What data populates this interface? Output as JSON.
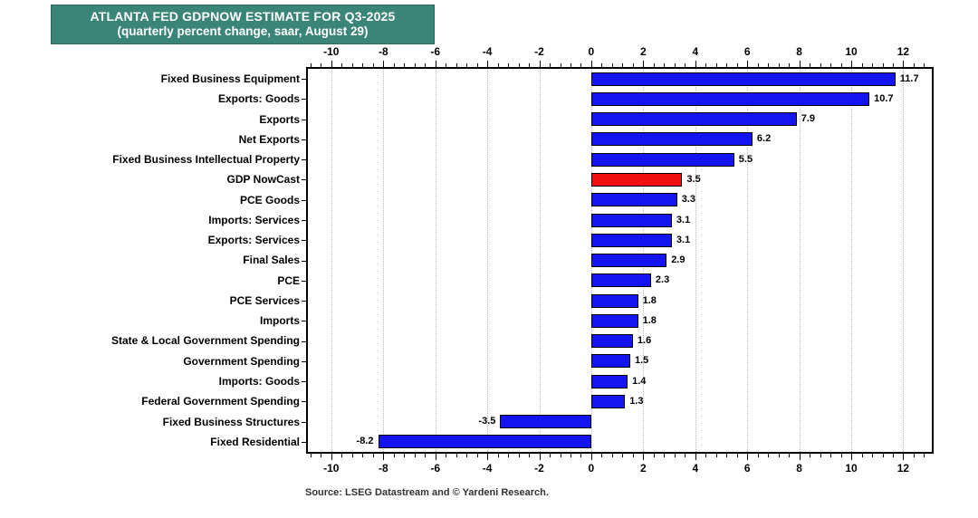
{
  "header": {
    "title": "ATLANTA FED GDPNOW ESTIMATE FOR Q3-2025",
    "subtitle": "(quarterly percent change, saar, August 29)",
    "bg_color": "#3A8577",
    "text_color": "#FFFFFF"
  },
  "chart_data": {
    "type": "bar",
    "orientation": "horizontal",
    "title": "ATLANTA FED GDPNOW ESTIMATE FOR Q3-2025",
    "subtitle": "(quarterly percent change, saar, August 29)",
    "categories": [
      "Fixed Business Equipment",
      "Exports: Goods",
      "Exports",
      "Net Exports",
      "Fixed Business Intellectual Property",
      "GDP NowCast",
      "PCE Goods",
      "Imports: Services",
      "Exports: Services",
      "Final Sales",
      "PCE",
      "PCE Services",
      "Imports",
      "State & Local Government Spending",
      "Government Spending",
      "Imports: Goods",
      "Federal Government Spending",
      "Fixed Business Structures",
      "Fixed Residential"
    ],
    "values": [
      11.7,
      10.7,
      7.9,
      6.2,
      5.5,
      3.5,
      3.3,
      3.1,
      3.1,
      2.9,
      2.3,
      1.8,
      1.8,
      1.6,
      1.5,
      1.4,
      1.3,
      -3.5,
      -8.2
    ],
    "highlight_index": 5,
    "highlight_category": "GDP NowCast",
    "bar_color": "#1414F0",
    "highlight_color": "#F01010",
    "bar_border_color": "#000000",
    "xlim": [
      -10.9,
      13.1
    ],
    "x_major_ticks": [
      -10,
      -8,
      -6,
      -4,
      -2,
      0,
      2,
      4,
      6,
      8,
      10,
      12
    ],
    "x_minor_step": 0.4,
    "grid": {
      "vertical": true,
      "style": "dotted",
      "color": "#B8B8B8"
    },
    "value_labels": true,
    "axis_ticks_position": "top-and-bottom",
    "legend": "none"
  },
  "footer": {
    "source": "Source: LSEG Datastream and © Yardeni Research."
  }
}
